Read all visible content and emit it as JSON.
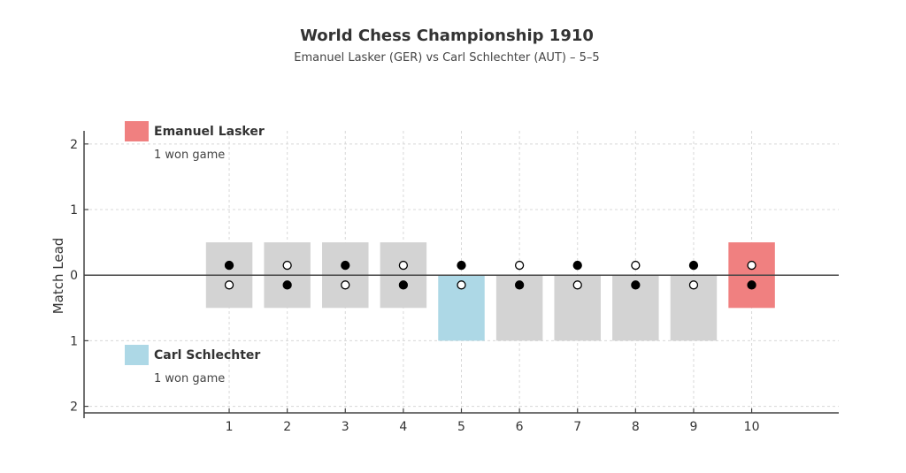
{
  "chart_data": {
    "type": "bar",
    "title": "World Chess Championship 1910",
    "subtitle": "Emanuel Lasker (GER) vs Carl Schlechter (AUT) – 5–5",
    "xlabel": "",
    "ylabel": "Match Lead",
    "xlim": [
      -1.5,
      11.5
    ],
    "ylim": [
      -2.1,
      2.2
    ],
    "grid": true,
    "x_ticks": [
      1,
      2,
      3,
      4,
      5,
      6,
      7,
      8,
      9,
      10
    ],
    "x_tick_labels": [
      "1",
      "2",
      "3",
      "4",
      "5",
      "6",
      "7",
      "8",
      "9",
      "10"
    ],
    "y_ticks": [
      2,
      1,
      0,
      -1,
      -2
    ],
    "y_tick_labels": [
      "2",
      "1",
      "0",
      "1",
      "2"
    ],
    "games": [
      {
        "game": 1,
        "result": "draw",
        "bottom": -0.5,
        "top": 0.5,
        "top_piece": "black"
      },
      {
        "game": 2,
        "result": "draw",
        "bottom": -0.5,
        "top": 0.5,
        "top_piece": "white"
      },
      {
        "game": 3,
        "result": "draw",
        "bottom": -0.5,
        "top": 0.5,
        "top_piece": "black"
      },
      {
        "game": 4,
        "result": "draw",
        "bottom": -0.5,
        "top": 0.5,
        "top_piece": "white"
      },
      {
        "game": 5,
        "result": "schlechter",
        "bottom": -1,
        "top": 0,
        "top_piece": "black"
      },
      {
        "game": 6,
        "result": "draw",
        "bottom": -1,
        "top": 0,
        "top_piece": "white"
      },
      {
        "game": 7,
        "result": "draw",
        "bottom": -1,
        "top": 0,
        "top_piece": "black"
      },
      {
        "game": 8,
        "result": "draw",
        "bottom": -1,
        "top": 0,
        "top_piece": "white"
      },
      {
        "game": 9,
        "result": "draw",
        "bottom": -1,
        "top": 0,
        "top_piece": "black"
      },
      {
        "game": 10,
        "result": "lasker",
        "bottom": -0.5,
        "top": 0.5,
        "top_piece": "white"
      }
    ],
    "colors": {
      "draw": "#d3d3d3",
      "lasker": "#f08080",
      "schlechter": "#add8e6"
    },
    "legend": [
      {
        "name": "Emanuel Lasker",
        "sub": "1 won game",
        "color": "#f08080",
        "placement": "top-left"
      },
      {
        "name": "Carl Schlechter",
        "sub": "1 won game",
        "color": "#add8e6",
        "placement": "bottom-left"
      }
    ]
  }
}
